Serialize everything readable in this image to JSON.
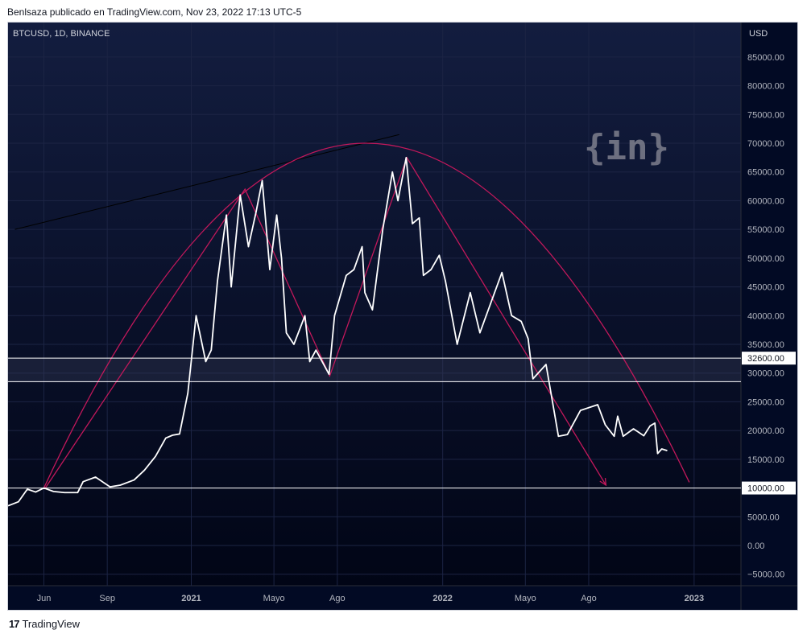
{
  "publisher_line": "Benlsaza publicado en TradingView.com, Nov 23, 2022 17:13 UTC-5",
  "footer": {
    "logo_text": "17",
    "brand": "TradingView"
  },
  "colors": {
    "background": "#020a24",
    "price_line": "#ffffff",
    "curve": "#c2185b",
    "trendline": "#000000",
    "watermark": "#8e8e9a"
  },
  "watermark_text": "{in}",
  "chart_data": {
    "type": "line",
    "title": "BTCUSD, 1D, BINANCE",
    "ylabel": "USD",
    "ylim": [
      -7000,
      91000
    ],
    "y_ticks": [
      85000,
      80000,
      75000,
      70000,
      65000,
      60000,
      55000,
      50000,
      45000,
      40000,
      35000,
      30000,
      25000,
      20000,
      15000,
      10000,
      5000,
      0,
      -5000
    ],
    "y_tick_labels": [
      "85000.00",
      "80000.00",
      "75000.00",
      "70000.00",
      "65000.00",
      "60000.00",
      "55000.00",
      "50000.00",
      "45000.00",
      "40000.00",
      "35000.00",
      "30000.00",
      "25000.00",
      "20000.00",
      "15000.00",
      "10000.00",
      "5000.00",
      "0.00",
      "−5000.00"
    ],
    "x_range": [
      "2020-04-10",
      "2023-03-10"
    ],
    "x_ticks": [
      {
        "date": "2020-06-01",
        "label": "Jun"
      },
      {
        "date": "2020-09-01",
        "label": "Sep"
      },
      {
        "date": "2021-01-01",
        "label": "2021",
        "bold": true
      },
      {
        "date": "2021-05-01",
        "label": "Mayo"
      },
      {
        "date": "2021-08-01",
        "label": "Ago"
      },
      {
        "date": "2022-01-01",
        "label": "2022",
        "bold": true
      },
      {
        "date": "2022-05-01",
        "label": "Mayo"
      },
      {
        "date": "2022-08-01",
        "label": "Ago"
      },
      {
        "date": "2023-01-01",
        "label": "2023",
        "bold": true
      }
    ],
    "grid": true,
    "series": [
      {
        "name": "BTCUSD",
        "points": [
          [
            "2020-04-10",
            6900
          ],
          [
            "2020-04-25",
            7600
          ],
          [
            "2020-05-08",
            9800
          ],
          [
            "2020-05-20",
            9300
          ],
          [
            "2020-06-01",
            10000
          ],
          [
            "2020-06-15",
            9400
          ],
          [
            "2020-07-01",
            9200
          ],
          [
            "2020-07-20",
            9200
          ],
          [
            "2020-07-28",
            11100
          ],
          [
            "2020-08-15",
            11900
          ],
          [
            "2020-09-05",
            10200
          ],
          [
            "2020-09-20",
            10500
          ],
          [
            "2020-10-10",
            11400
          ],
          [
            "2020-10-25",
            13100
          ],
          [
            "2020-11-10",
            15500
          ],
          [
            "2020-11-25",
            18700
          ],
          [
            "2020-12-05",
            19200
          ],
          [
            "2020-12-15",
            19400
          ],
          [
            "2020-12-27",
            26500
          ],
          [
            "2021-01-08",
            40000
          ],
          [
            "2021-01-15",
            36000
          ],
          [
            "2021-01-22",
            32000
          ],
          [
            "2021-01-30",
            34000
          ],
          [
            "2021-02-08",
            46000
          ],
          [
            "2021-02-21",
            57500
          ],
          [
            "2021-02-28",
            45000
          ],
          [
            "2021-03-13",
            61000
          ],
          [
            "2021-03-25",
            52000
          ],
          [
            "2021-04-05",
            58000
          ],
          [
            "2021-04-14",
            63500
          ],
          [
            "2021-04-25",
            48000
          ],
          [
            "2021-05-05",
            57500
          ],
          [
            "2021-05-12",
            50000
          ],
          [
            "2021-05-19",
            37000
          ],
          [
            "2021-05-30",
            35000
          ],
          [
            "2021-06-15",
            40000
          ],
          [
            "2021-06-22",
            32000
          ],
          [
            "2021-07-01",
            34000
          ],
          [
            "2021-07-20",
            29800
          ],
          [
            "2021-07-28",
            40000
          ],
          [
            "2021-08-14",
            47000
          ],
          [
            "2021-08-25",
            48000
          ],
          [
            "2021-09-06",
            52000
          ],
          [
            "2021-09-10",
            44000
          ],
          [
            "2021-09-21",
            41000
          ],
          [
            "2021-10-06",
            55000
          ],
          [
            "2021-10-20",
            65000
          ],
          [
            "2021-10-28",
            60000
          ],
          [
            "2021-11-09",
            67500
          ],
          [
            "2021-11-18",
            56000
          ],
          [
            "2021-11-28",
            57000
          ],
          [
            "2021-12-04",
            47000
          ],
          [
            "2021-12-15",
            48000
          ],
          [
            "2021-12-27",
            50500
          ],
          [
            "2022-01-05",
            46000
          ],
          [
            "2022-01-22",
            35000
          ],
          [
            "2022-02-10",
            44000
          ],
          [
            "2022-02-24",
            37000
          ],
          [
            "2022-03-28",
            47500
          ],
          [
            "2022-04-11",
            40000
          ],
          [
            "2022-04-25",
            39000
          ],
          [
            "2022-05-05",
            36000
          ],
          [
            "2022-05-12",
            29000
          ],
          [
            "2022-05-31",
            31500
          ],
          [
            "2022-06-13",
            22500
          ],
          [
            "2022-06-18",
            19000
          ],
          [
            "2022-07-01",
            19300
          ],
          [
            "2022-07-20",
            23500
          ],
          [
            "2022-08-14",
            24500
          ],
          [
            "2022-08-25",
            21000
          ],
          [
            "2022-09-07",
            19000
          ],
          [
            "2022-09-12",
            22500
          ],
          [
            "2022-09-20",
            19000
          ],
          [
            "2022-10-05",
            20300
          ],
          [
            "2022-10-20",
            19100
          ],
          [
            "2022-10-29",
            20800
          ],
          [
            "2022-11-05",
            21300
          ],
          [
            "2022-11-09",
            16000
          ],
          [
            "2022-11-15",
            16800
          ],
          [
            "2022-11-23",
            16500
          ]
        ]
      }
    ],
    "horizontal_lines": [
      {
        "y": 32600,
        "label": "32600.00"
      },
      {
        "y": 28500
      },
      {
        "y": 10000,
        "label": "10000.00"
      }
    ],
    "zigzag": [
      [
        "2020-06-02",
        9800
      ],
      [
        "2021-03-20",
        62000
      ],
      [
        "2021-07-21",
        29500
      ],
      [
        "2021-11-10",
        67500
      ],
      [
        "2022-08-26",
        10500
      ]
    ],
    "arc": {
      "start": [
        "2020-06-01",
        10000
      ],
      "peak": [
        "2021-09-10",
        70000
      ],
      "end": [
        "2022-12-25",
        11000
      ]
    },
    "trendline": [
      [
        "2020-04-20",
        55000
      ],
      [
        "2021-10-30",
        71500
      ]
    ]
  }
}
